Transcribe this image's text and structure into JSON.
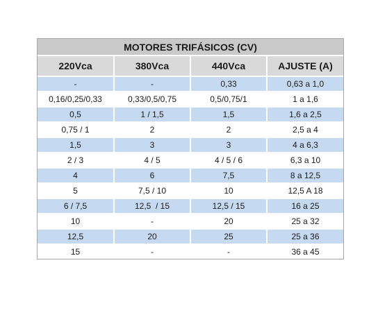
{
  "table": {
    "title": "MOTORES TRIFÁSICOS (CV)",
    "header": [
      "220Vca",
      "380Vca",
      "440Vca",
      "AJUSTE (A)"
    ],
    "rows": [
      [
        "-",
        "-",
        "0,33",
        "0,63 a 1,0"
      ],
      [
        "0,16/0,25/0,33",
        "0,33/0,5/0,75",
        "0,5/0,75/1",
        "1 a 1,6"
      ],
      [
        "0,5",
        "1 / 1,5",
        "1,5",
        "1,6 a 2,5"
      ],
      [
        "0,75 / 1",
        "2",
        "2",
        "2,5 a 4"
      ],
      [
        "1,5",
        "3",
        "3",
        "4 a 6,3"
      ],
      [
        "2 / 3",
        "4 / 5",
        "4 / 5 / 6",
        "6,3 a 10"
      ],
      [
        "4",
        "6",
        "7,5",
        "8 a 12,5"
      ],
      [
        "5",
        "7,5 / 10",
        "10",
        "12,5 A 18"
      ],
      [
        "6 / 7,5",
        "12,5  / 15",
        "12,5 / 15",
        "16 a 25"
      ],
      [
        "10",
        "-",
        "20",
        "25 a 32"
      ],
      [
        "12,5",
        "20",
        "25",
        "25 a 36"
      ],
      [
        "15",
        "-",
        "-",
        "36 a 45"
      ]
    ]
  }
}
